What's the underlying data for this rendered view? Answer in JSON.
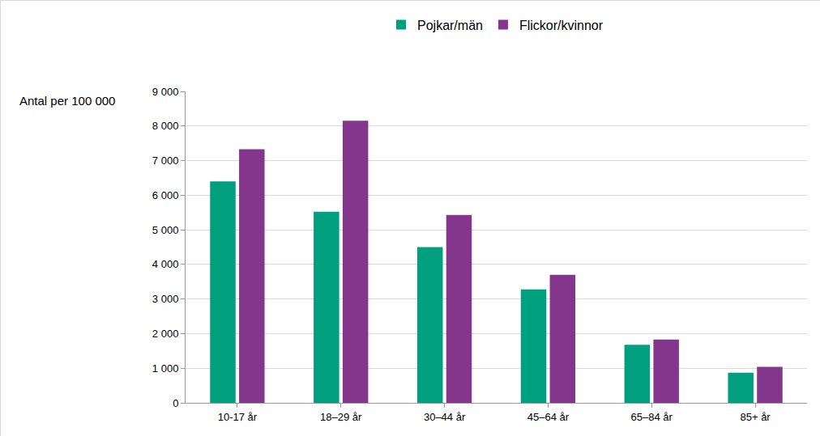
{
  "chart_data": {
    "type": "bar",
    "ylabel": "Antal per 100 000",
    "categories": [
      "10-17 år",
      "18–29 år",
      "30–44 år",
      "45–64 år",
      "65–84 år",
      "85+ år"
    ],
    "series": [
      {
        "name": "Pojkar/män",
        "color": "#00a07f",
        "values": [
          6400,
          5520,
          4500,
          3280,
          1680,
          870
        ]
      },
      {
        "name": "Flickor/kvinnor",
        "color": "#84368c",
        "values": [
          7330,
          8150,
          5430,
          3700,
          1830,
          1040
        ]
      }
    ],
    "ylim": [
      0,
      9000
    ],
    "yticks": [
      0,
      {
        "value": 1000,
        "label": "1 000"
      },
      {
        "value": 2000,
        "label": "2 000"
      },
      {
        "value": 3000,
        "label": "3 000"
      },
      {
        "value": 4000,
        "label": "4 000"
      },
      {
        "value": 5000,
        "label": "5 000"
      },
      {
        "value": 6000,
        "label": "6 000"
      },
      {
        "value": 7000,
        "label": "7 000"
      },
      {
        "value": 8000,
        "label": "8 000"
      },
      {
        "value": 9000,
        "label": "9 000"
      }
    ],
    "grid": true,
    "legend": "top"
  }
}
